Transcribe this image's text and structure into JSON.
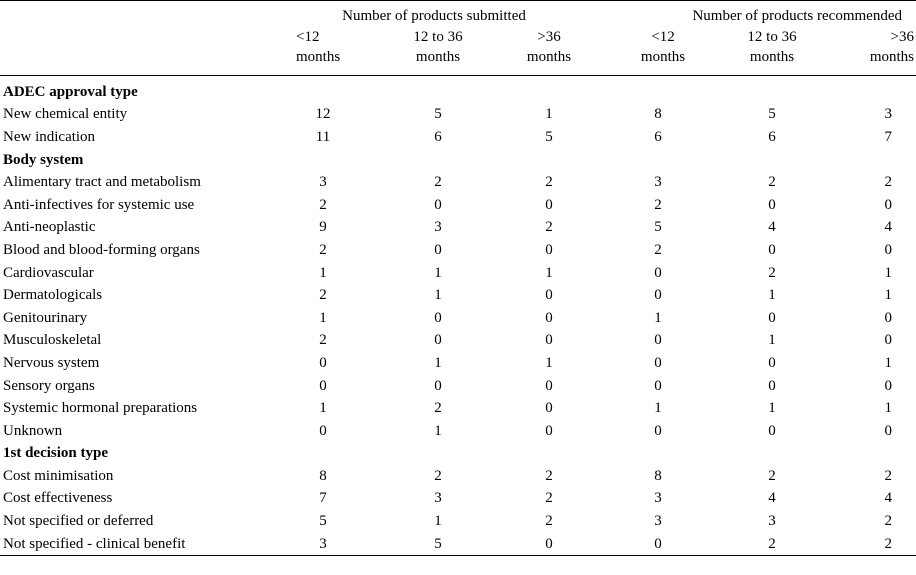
{
  "header": {
    "groups": [
      "Number of products submitted",
      "Number of products recommended"
    ],
    "subcolumns": [
      [
        "<12",
        "months"
      ],
      [
        "12 to 36",
        "months"
      ],
      [
        ">36",
        "months"
      ],
      [
        "<12",
        "months"
      ],
      [
        "12 to 36",
        "months"
      ],
      [
        ">36",
        "months"
      ]
    ]
  },
  "sections": [
    {
      "title": "ADEC approval type",
      "rows": [
        {
          "label": "New chemical entity",
          "values": [
            "12",
            "5",
            "1",
            "8",
            "5",
            "3"
          ]
        },
        {
          "label": "New indication",
          "values": [
            "11",
            "6",
            "5",
            "6",
            "6",
            "7"
          ]
        }
      ]
    },
    {
      "title": "Body system",
      "rows": [
        {
          "label": "Alimentary tract and metabolism",
          "values": [
            "3",
            "2",
            "2",
            "3",
            "2",
            "2"
          ]
        },
        {
          "label": "Anti-infectives for systemic use",
          "values": [
            "2",
            "0",
            "0",
            "2",
            "0",
            "0"
          ]
        },
        {
          "label": "Anti-neoplastic",
          "values": [
            "9",
            "3",
            "2",
            "5",
            "4",
            "4"
          ]
        },
        {
          "label": "Blood and blood-forming organs",
          "values": [
            "2",
            "0",
            "0",
            "2",
            "0",
            "0"
          ]
        },
        {
          "label": "Cardiovascular",
          "values": [
            "1",
            "1",
            "1",
            "0",
            "2",
            "1"
          ]
        },
        {
          "label": "Dermatologicals",
          "values": [
            "2",
            "1",
            "0",
            "0",
            "1",
            "1"
          ]
        },
        {
          "label": "Genitourinary",
          "values": [
            "1",
            "0",
            "0",
            "1",
            "0",
            "0"
          ]
        },
        {
          "label": "Musculoskeletal",
          "values": [
            "2",
            "0",
            "0",
            "0",
            "1",
            "0"
          ]
        },
        {
          "label": "Nervous system",
          "values": [
            "0",
            "1",
            "1",
            "0",
            "0",
            "1"
          ]
        },
        {
          "label": "Sensory organs",
          "values": [
            "0",
            "0",
            "0",
            "0",
            "0",
            "0"
          ]
        },
        {
          "label": "Systemic hormonal preparations",
          "values": [
            "1",
            "2",
            "0",
            "1",
            "1",
            "1"
          ]
        },
        {
          "label": "Unknown",
          "values": [
            "0",
            "1",
            "0",
            "0",
            "0",
            "0"
          ]
        }
      ]
    },
    {
      "title": "1st decision type",
      "rows": [
        {
          "label": "Cost minimisation",
          "values": [
            "8",
            "2",
            "2",
            "8",
            "2",
            "2"
          ]
        },
        {
          "label": "Cost effectiveness",
          "values": [
            "7",
            "3",
            "2",
            "3",
            "4",
            "4"
          ]
        },
        {
          "label": "Not specified or deferred",
          "values": [
            "5",
            "1",
            "2",
            "3",
            "3",
            "2"
          ]
        },
        {
          "label": "Not specified - clinical benefit",
          "values": [
            "3",
            "5",
            "0",
            "0",
            "2",
            "2"
          ]
        }
      ]
    }
  ]
}
